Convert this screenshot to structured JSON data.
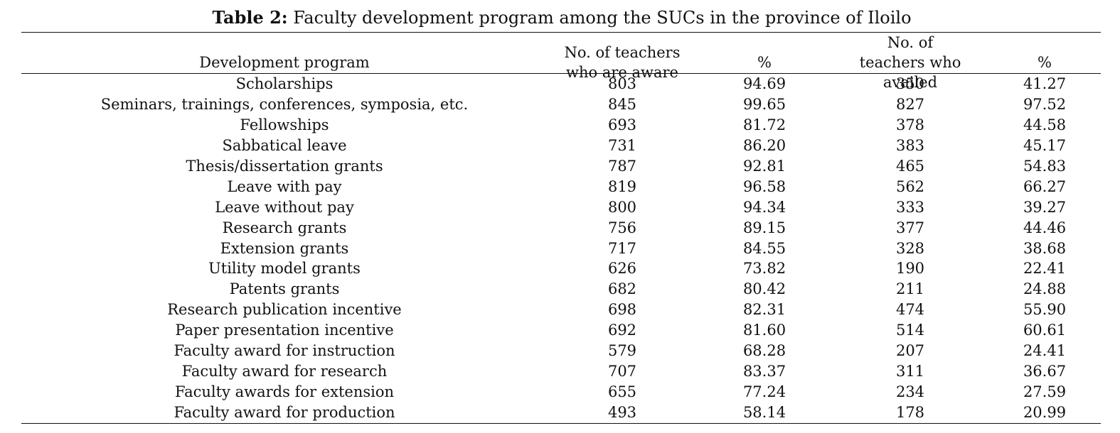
{
  "caption": {
    "lead": "Table 2:",
    "text": " Faculty development program among the SUCs in the province of Iloilo"
  },
  "table": {
    "headers": [
      "Development program",
      "No. of teachers who are aware",
      "%",
      "No. of teachers who availed",
      "%"
    ],
    "rows": [
      [
        "Scholarships",
        "803",
        "94.69",
        "350",
        "41.27"
      ],
      [
        "Seminars, trainings, conferences, symposia, etc.",
        "845",
        "99.65",
        "827",
        "97.52"
      ],
      [
        "Fellowships",
        "693",
        "81.72",
        "378",
        "44.58"
      ],
      [
        "Sabbatical leave",
        "731",
        "86.20",
        "383",
        "45.17"
      ],
      [
        "Thesis/dissertation grants",
        "787",
        "92.81",
        "465",
        "54.83"
      ],
      [
        "Leave with pay",
        "819",
        "96.58",
        "562",
        "66.27"
      ],
      [
        "Leave without pay",
        "800",
        "94.34",
        "333",
        "39.27"
      ],
      [
        "Research grants",
        "756",
        "89.15",
        "377",
        "44.46"
      ],
      [
        "Extension grants",
        "717",
        "84.55",
        "328",
        "38.68"
      ],
      [
        "Utility model grants",
        "626",
        "73.82",
        "190",
        "22.41"
      ],
      [
        "Patents grants",
        "682",
        "80.42",
        "211",
        "24.88"
      ],
      [
        "Research publication incentive",
        "698",
        "82.31",
        "474",
        "55.90"
      ],
      [
        "Paper presentation incentive",
        "692",
        "81.60",
        "514",
        "60.61"
      ],
      [
        "Faculty award for instruction",
        "579",
        "68.28",
        "207",
        "24.41"
      ],
      [
        "Faculty award for research",
        "707",
        "83.37",
        "311",
        "36.67"
      ],
      [
        "Faculty awards for extension",
        "655",
        "77.24",
        "234",
        "27.59"
      ],
      [
        "Faculty award for production",
        "493",
        "58.14",
        "178",
        "20.99"
      ]
    ]
  }
}
